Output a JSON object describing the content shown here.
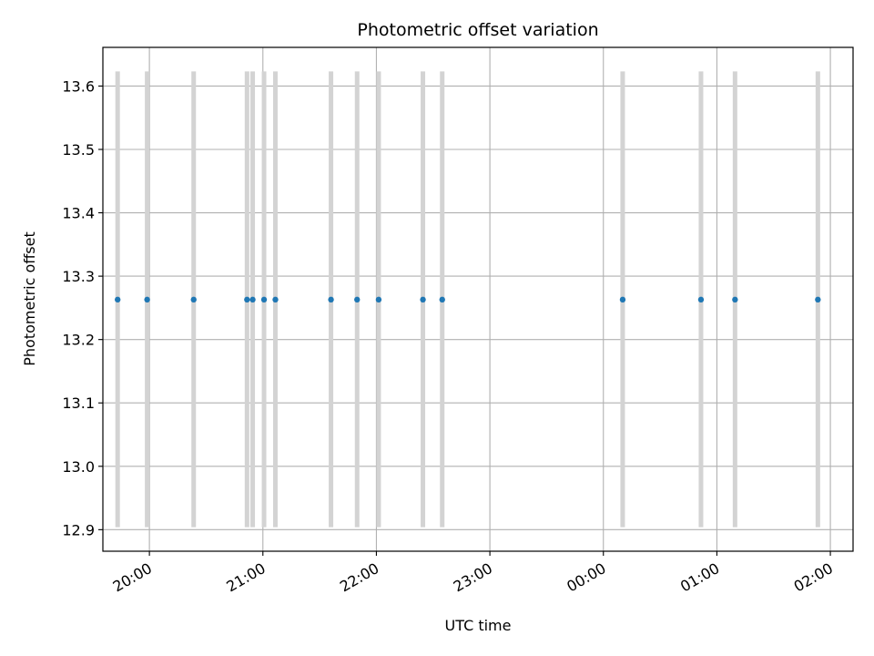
{
  "chart_data": {
    "type": "scatter",
    "title": "Photometric offset variation",
    "xlabel": "UTC time",
    "ylabel": "Photometric offset",
    "x_ticks": [
      "20:00",
      "21:00",
      "22:00",
      "23:00",
      "00:00",
      "01:00",
      "02:00"
    ],
    "x_tick_hours": [
      20,
      21,
      22,
      23,
      24,
      25,
      26
    ],
    "xlim_hours": [
      19.59,
      26.2
    ],
    "y_ticks": [
      "12.9",
      "13.0",
      "13.1",
      "13.2",
      "13.3",
      "13.4",
      "13.5",
      "13.6"
    ],
    "y_tick_values": [
      12.9,
      13.0,
      13.1,
      13.2,
      13.3,
      13.4,
      13.5,
      13.6
    ],
    "ylim": [
      12.866,
      13.661
    ],
    "grid": true,
    "points": {
      "x_hours": [
        19.72,
        19.98,
        20.39,
        20.86,
        20.91,
        21.01,
        21.11,
        21.6,
        21.83,
        22.02,
        22.41,
        22.58,
        24.17,
        24.86,
        25.16,
        25.89
      ],
      "y": [
        13.263,
        13.263,
        13.263,
        13.263,
        13.263,
        13.263,
        13.263,
        13.263,
        13.263,
        13.263,
        13.263,
        13.263,
        13.263,
        13.263,
        13.263,
        13.263
      ],
      "yerr_low": 12.904,
      "yerr_high": 13.623
    },
    "colors": {
      "point": "#1f77b4",
      "errorbar": "#d3d3d3",
      "grid": "#b0b0b0",
      "axes": "#000000"
    }
  }
}
